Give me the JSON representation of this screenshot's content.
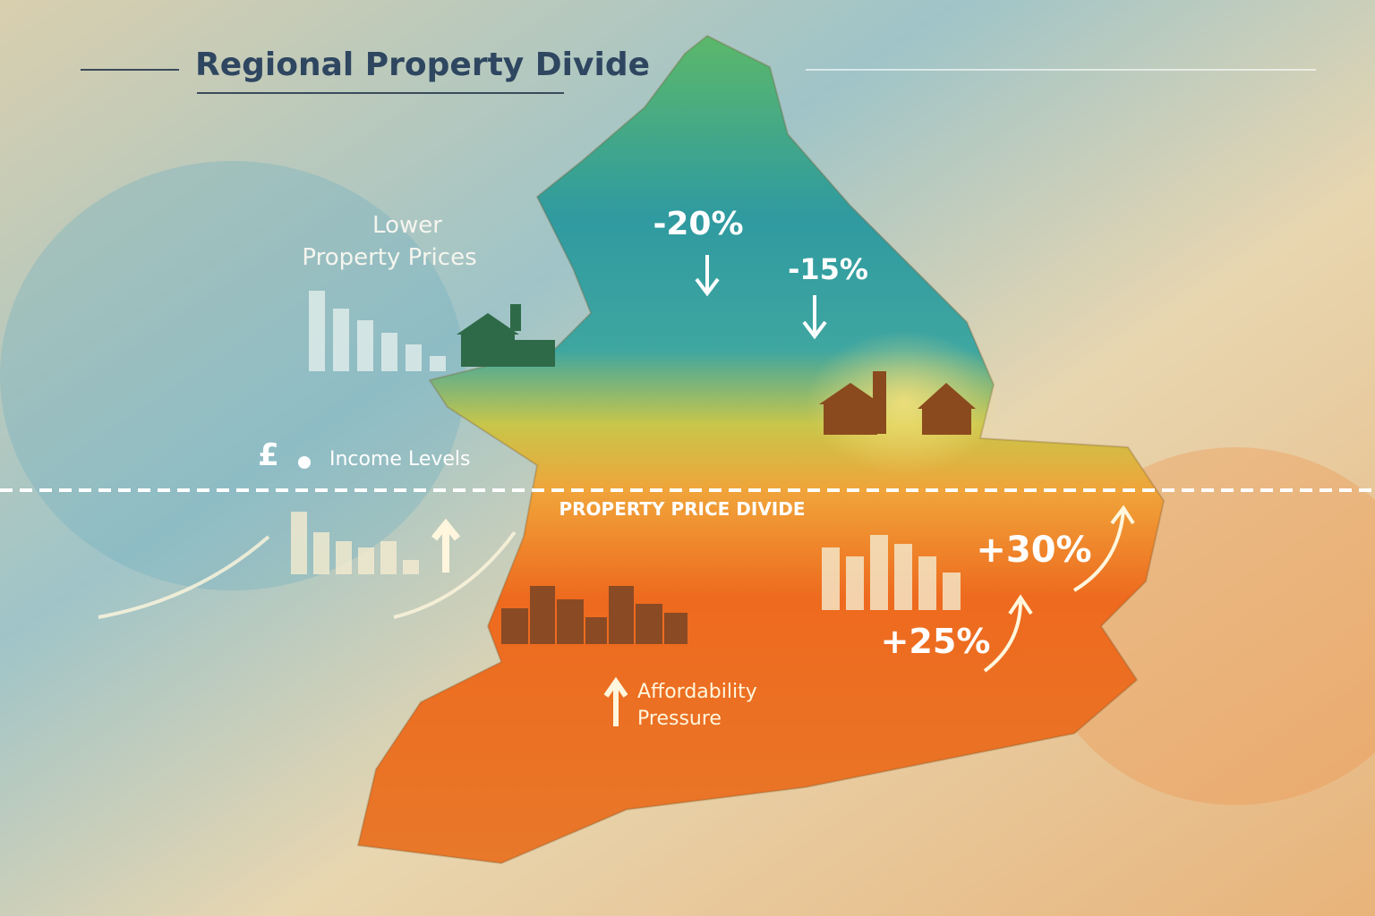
{
  "title": "Regional Property Divide",
  "north": {
    "lower_prices": [
      "Lower",
      "Property Prices"
    ],
    "income_symbol": "£",
    "income": "Income Levels",
    "change_1": "-20%",
    "change_2": "-15%"
  },
  "divide": "PROPERTY PRICE DIVIDE",
  "south": {
    "change_1": "+30%",
    "change_2": "+25%",
    "affordability": [
      "Affordability",
      "Pressure"
    ]
  }
}
